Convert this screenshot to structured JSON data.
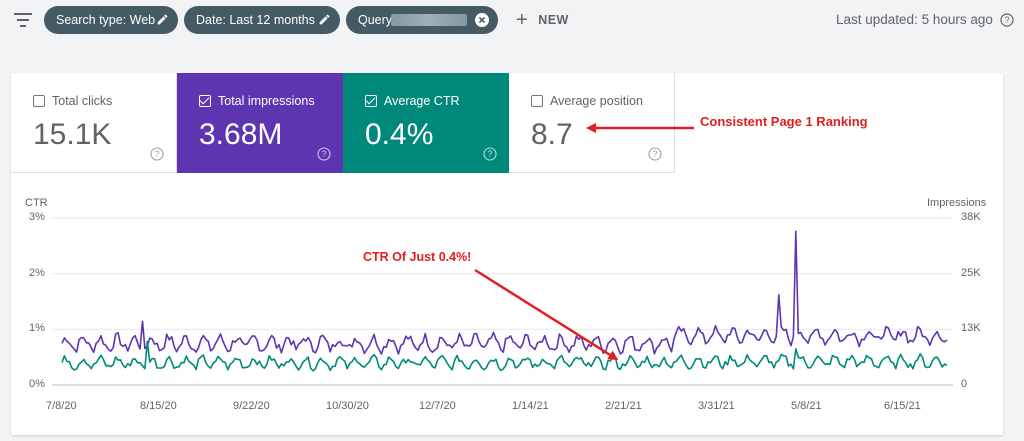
{
  "filters": {
    "search_type": "Search type: Web",
    "date": "Date: Last 12 months",
    "query": "Query:",
    "new_label": "NEW"
  },
  "last_updated": "Last updated: 5 hours ago",
  "metrics": {
    "total_clicks": {
      "label": "Total clicks",
      "value": "15.1K",
      "selected": false
    },
    "total_impressions": {
      "label": "Total impressions",
      "value": "3.68M",
      "selected": true,
      "color": "#5e35b1"
    },
    "average_ctr": {
      "label": "Average CTR",
      "value": "0.4%",
      "selected": true,
      "color": "#00897b"
    },
    "average_position": {
      "label": "Average position",
      "value": "8.7",
      "selected": false
    }
  },
  "annotations": {
    "ranking": "Consistent Page 1 Ranking",
    "ctr": "CTR Of Just 0.4%!"
  },
  "chart_data": {
    "type": "line",
    "left_axis": {
      "title": "CTR",
      "ticks": [
        "3%",
        "2%",
        "1%",
        "0%"
      ],
      "range": [
        0,
        3
      ]
    },
    "right_axis": {
      "title": "Impressions",
      "ticks": [
        "38K",
        "25K",
        "13K",
        "0"
      ],
      "range": [
        0,
        38000
      ]
    },
    "x_ticks": [
      "7/8/20",
      "8/15/20",
      "9/22/20",
      "10/30/20",
      "12/7/20",
      "1/14/21",
      "2/21/21",
      "3/31/21",
      "5/8/21",
      "6/15/21"
    ],
    "series": [
      {
        "name": "Total impressions",
        "axis": "right",
        "color": "#5e35b1",
        "start": "7/8/20",
        "end": "7/6/21",
        "baseline": 9500,
        "noise": 2500,
        "spikes": [
          {
            "date": "8/10/20",
            "value": 14500
          },
          {
            "date": "4/28/21",
            "value": 20500
          },
          {
            "date": "5/5/21",
            "value": 35000
          }
        ]
      },
      {
        "name": "Average CTR",
        "axis": "left",
        "color": "#00897b",
        "start": "7/8/20",
        "end": "7/6/21",
        "baseline": 0.4,
        "noise": 0.15,
        "spikes": [
          {
            "date": "8/12/20",
            "value": 0.78
          },
          {
            "date": "5/5/21",
            "value": 0.65
          }
        ]
      }
    ]
  }
}
